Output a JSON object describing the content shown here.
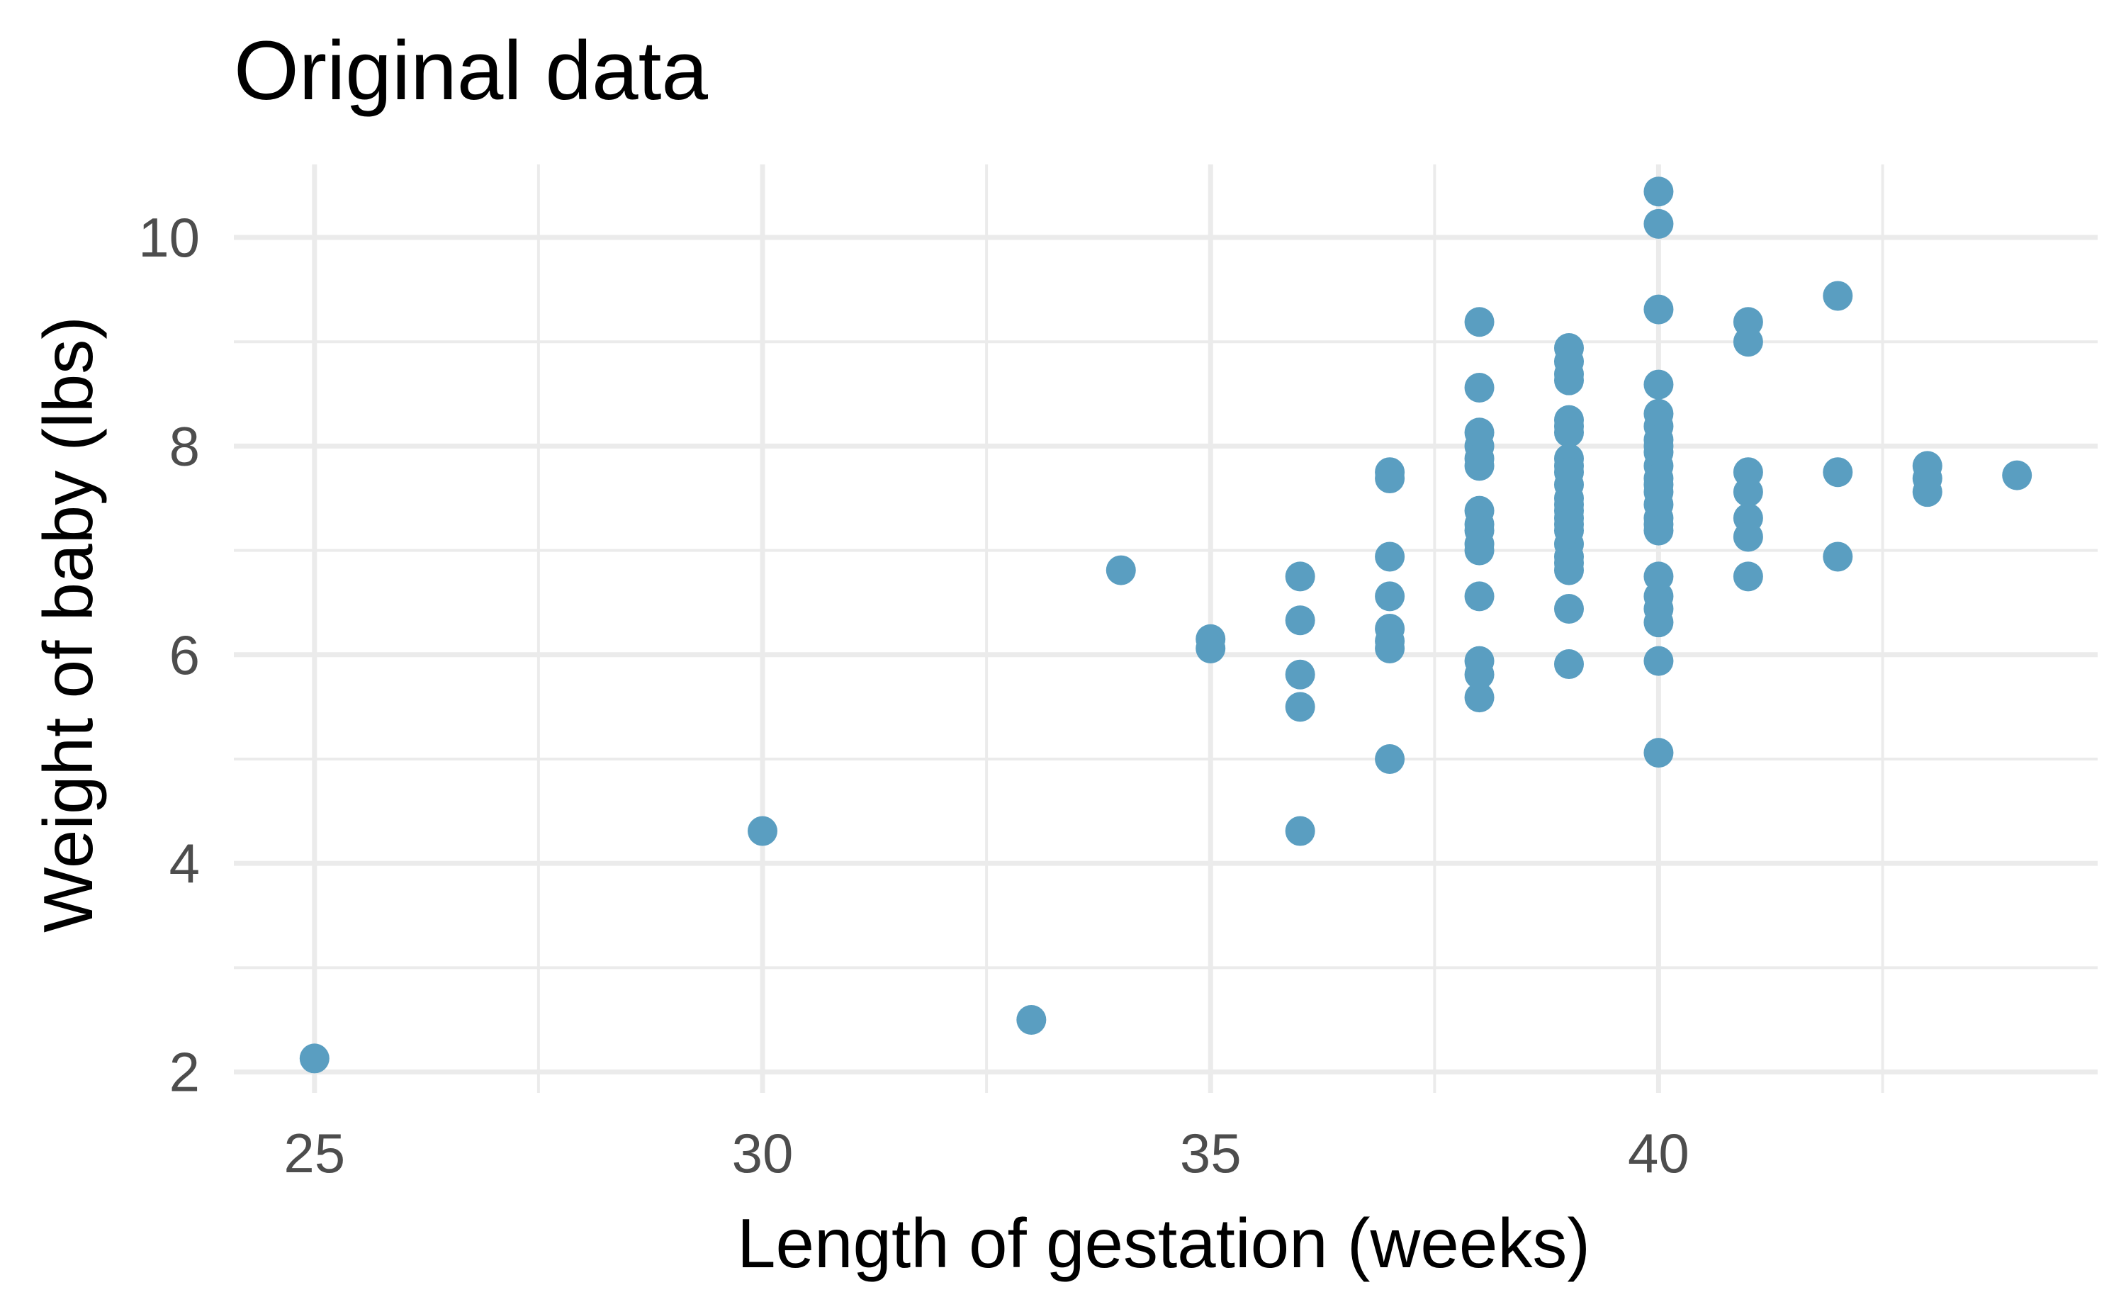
{
  "chart_data": {
    "type": "scatter",
    "title": "Original data",
    "xlabel": "Length of gestation (weeks)",
    "ylabel": "Weight of baby (lbs)",
    "xlim": [
      24.1,
      44.9
    ],
    "ylim": [
      1.8,
      10.7
    ],
    "x_ticks": [
      25,
      30,
      35,
      40
    ],
    "y_ticks": [
      2,
      4,
      6,
      8,
      10
    ],
    "x_minor": [
      27.5,
      32.5,
      37.5,
      42.5
    ],
    "y_minor": [
      3,
      5,
      7,
      9
    ],
    "grid": true,
    "legend": "none",
    "point_color": "#5a9ec1",
    "points": [
      [
        25,
        2.13
      ],
      [
        30,
        4.31
      ],
      [
        33,
        2.5
      ],
      [
        34,
        6.81
      ],
      [
        35,
        6.15
      ],
      [
        35,
        6.06
      ],
      [
        36,
        6.75
      ],
      [
        36,
        6.33
      ],
      [
        36,
        5.81
      ],
      [
        36,
        5.5
      ],
      [
        36,
        4.31
      ],
      [
        37,
        7.75
      ],
      [
        37,
        7.69
      ],
      [
        37,
        6.94
      ],
      [
        37,
        6.56
      ],
      [
        37,
        6.25
      ],
      [
        37,
        6.13
      ],
      [
        37,
        6.06
      ],
      [
        37,
        5.0
      ],
      [
        38,
        9.19
      ],
      [
        38,
        8.56
      ],
      [
        38,
        8.13
      ],
      [
        38,
        8.0
      ],
      [
        38,
        7.88
      ],
      [
        38,
        7.81
      ],
      [
        38,
        7.38
      ],
      [
        38,
        7.25
      ],
      [
        38,
        7.19
      ],
      [
        38,
        7.06
      ],
      [
        38,
        7.0
      ],
      [
        38,
        6.56
      ],
      [
        38,
        5.94
      ],
      [
        38,
        5.81
      ],
      [
        38,
        5.59
      ],
      [
        39,
        8.94
      ],
      [
        39,
        8.81
      ],
      [
        39,
        8.69
      ],
      [
        39,
        8.63
      ],
      [
        39,
        8.25
      ],
      [
        39,
        8.19
      ],
      [
        39,
        8.13
      ],
      [
        39,
        7.88
      ],
      [
        39,
        7.81
      ],
      [
        39,
        7.75
      ],
      [
        39,
        7.63
      ],
      [
        39,
        7.5
      ],
      [
        39,
        7.44
      ],
      [
        39,
        7.38
      ],
      [
        39,
        7.31
      ],
      [
        39,
        7.25
      ],
      [
        39,
        7.19
      ],
      [
        39,
        7.06
      ],
      [
        39,
        6.94
      ],
      [
        39,
        6.88
      ],
      [
        39,
        6.81
      ],
      [
        39,
        6.44
      ],
      [
        39,
        5.91
      ],
      [
        40,
        10.44
      ],
      [
        40,
        10.13
      ],
      [
        40,
        9.31
      ],
      [
        40,
        8.59
      ],
      [
        40,
        8.31
      ],
      [
        40,
        8.19
      ],
      [
        40,
        8.06
      ],
      [
        40,
        8.0
      ],
      [
        40,
        7.94
      ],
      [
        40,
        7.81
      ],
      [
        40,
        7.69
      ],
      [
        40,
        7.63
      ],
      [
        40,
        7.56
      ],
      [
        40,
        7.44
      ],
      [
        40,
        7.31
      ],
      [
        40,
        7.25
      ],
      [
        40,
        7.19
      ],
      [
        40,
        6.75
      ],
      [
        40,
        6.56
      ],
      [
        40,
        6.44
      ],
      [
        40,
        6.31
      ],
      [
        40,
        5.94
      ],
      [
        40,
        5.06
      ],
      [
        41,
        9.19
      ],
      [
        41,
        9.0
      ],
      [
        41,
        7.75
      ],
      [
        41,
        7.56
      ],
      [
        41,
        7.31
      ],
      [
        41,
        7.13
      ],
      [
        41,
        6.75
      ],
      [
        42,
        9.44
      ],
      [
        42,
        7.75
      ],
      [
        42,
        6.94
      ],
      [
        43,
        7.81
      ],
      [
        43,
        7.69
      ],
      [
        43,
        7.56
      ],
      [
        44,
        7.72
      ]
    ]
  }
}
